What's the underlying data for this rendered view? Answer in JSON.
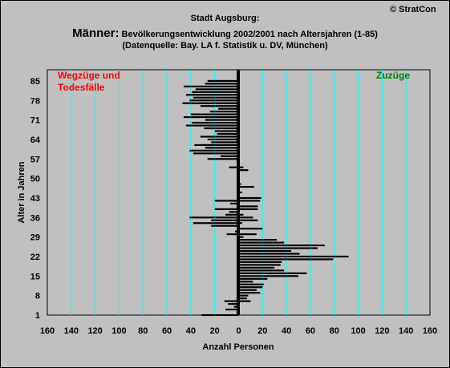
{
  "copyright": "© StratCon",
  "title_line1": "Stadt Augsburg:",
  "title_line2_big": "Männer:",
  "title_line2_rest": " Bevölkerungsentwicklung 2002/2001 nach Altersjahren (1-85)",
  "title_line3": "(Datenquelle: Bay. LA f. Statistik u. DV, München)",
  "chart_data": {
    "type": "bar",
    "orientation": "horizontal",
    "title": "Männer: Bevölkerungsentwicklung 2002/2001 nach Altersjahren (1-85)",
    "xlabel": "Anzahl Personen",
    "ylabel": "Alter in Jahren",
    "xlim": [
      -160,
      160
    ],
    "ylim": [
      1,
      89
    ],
    "x_ticks": [
      -160,
      -140,
      -120,
      -100,
      -80,
      -60,
      -40,
      -20,
      0,
      20,
      40,
      60,
      80,
      100,
      120,
      140,
      160
    ],
    "x_tick_labels": [
      "160",
      "140",
      "120",
      "100",
      "80",
      "60",
      "40",
      "20",
      "0",
      "20",
      "40",
      "60",
      "80",
      "100",
      "120",
      "140",
      "160"
    ],
    "y_ticks": [
      1,
      8,
      15,
      22,
      29,
      36,
      43,
      50,
      57,
      64,
      71,
      78,
      85
    ],
    "grid_color": "#00ffff",
    "plot_background": "#c0c0c0",
    "bar_color": "#000000",
    "annotations": {
      "left": {
        "line1": "Wegzüge und",
        "line2": "Todesfälle",
        "color": "#ff0000"
      },
      "right": {
        "text": "Zuzüge",
        "color": "#008000"
      }
    },
    "series": [
      {
        "name": "Wegzüge und Todesfälle",
        "ages": [
          1,
          2,
          3,
          4,
          5,
          6,
          7,
          8,
          9,
          10,
          11,
          12,
          13,
          14,
          15,
          16,
          17,
          18,
          19,
          20,
          21,
          22,
          23,
          24,
          25,
          26,
          27,
          28,
          29,
          30,
          31,
          32,
          33,
          34,
          35,
          36,
          37,
          38,
          39,
          40,
          41,
          42,
          43,
          44,
          45,
          46,
          47,
          48,
          49,
          50,
          51,
          52,
          53,
          54,
          55,
          56,
          57,
          58,
          59,
          60,
          61,
          62,
          63,
          64,
          65,
          66,
          67,
          68,
          69,
          70,
          71,
          72,
          73,
          74,
          75,
          76,
          77,
          78,
          79,
          80,
          81,
          82,
          83,
          84,
          85
        ],
        "values": [
          -31,
          0,
          -11,
          -4,
          -9,
          -12,
          0,
          0,
          0,
          0,
          0,
          0,
          0,
          0,
          0,
          0,
          0,
          0,
          0,
          0,
          0,
          0,
          0,
          0,
          0,
          0,
          0,
          0,
          0,
          -10,
          -3,
          0,
          -23,
          -38,
          -23,
          -41,
          -11,
          -8,
          -20,
          0,
          -7,
          -20,
          0,
          0,
          0,
          0,
          0,
          0,
          0,
          0,
          0,
          0,
          0,
          -8,
          0,
          0,
          -26,
          -15,
          -38,
          -41,
          -28,
          -37,
          -23,
          -26,
          -32,
          -18,
          -20,
          -29,
          -44,
          -39,
          -28,
          -46,
          -40,
          -24,
          -17,
          -32,
          -47,
          -41,
          -38,
          -44,
          -39,
          -36,
          -46,
          -28,
          -26
        ]
      },
      {
        "name": "Zuzüge",
        "ages": [
          1,
          2,
          3,
          4,
          5,
          6,
          7,
          8,
          9,
          10,
          11,
          12,
          13,
          14,
          15,
          16,
          17,
          18,
          19,
          20,
          21,
          22,
          23,
          24,
          25,
          26,
          27,
          28,
          29,
          30,
          31,
          32,
          33,
          34,
          35,
          36,
          37,
          38,
          39,
          40,
          41,
          42,
          43,
          44,
          45,
          46,
          47,
          48,
          49,
          50,
          51,
          52,
          53,
          54,
          55,
          56,
          57,
          58,
          59,
          60,
          61,
          62,
          63,
          64,
          65,
          66,
          67,
          68,
          69,
          70,
          71,
          72,
          73,
          74,
          75,
          76,
          77,
          78,
          79,
          80,
          81,
          82,
          83,
          84,
          85
        ],
        "values": [
          0,
          0,
          0,
          0,
          0,
          10,
          7,
          8,
          18,
          15,
          20,
          21,
          12,
          24,
          50,
          57,
          38,
          30,
          35,
          36,
          79,
          92,
          51,
          44,
          66,
          72,
          38,
          32,
          4,
          15,
          0,
          20,
          0,
          3,
          16,
          12,
          4,
          1,
          16,
          16,
          0,
          18,
          19,
          1,
          3,
          0,
          13,
          2,
          0,
          1,
          0,
          0,
          8,
          4,
          0,
          0,
          0,
          0,
          0,
          0,
          0,
          0,
          0,
          0,
          0,
          0,
          0,
          0,
          0,
          0,
          0,
          0,
          0,
          0,
          0,
          0,
          0,
          0,
          0,
          0,
          0,
          0,
          0,
          0,
          0
        ]
      }
    ]
  }
}
